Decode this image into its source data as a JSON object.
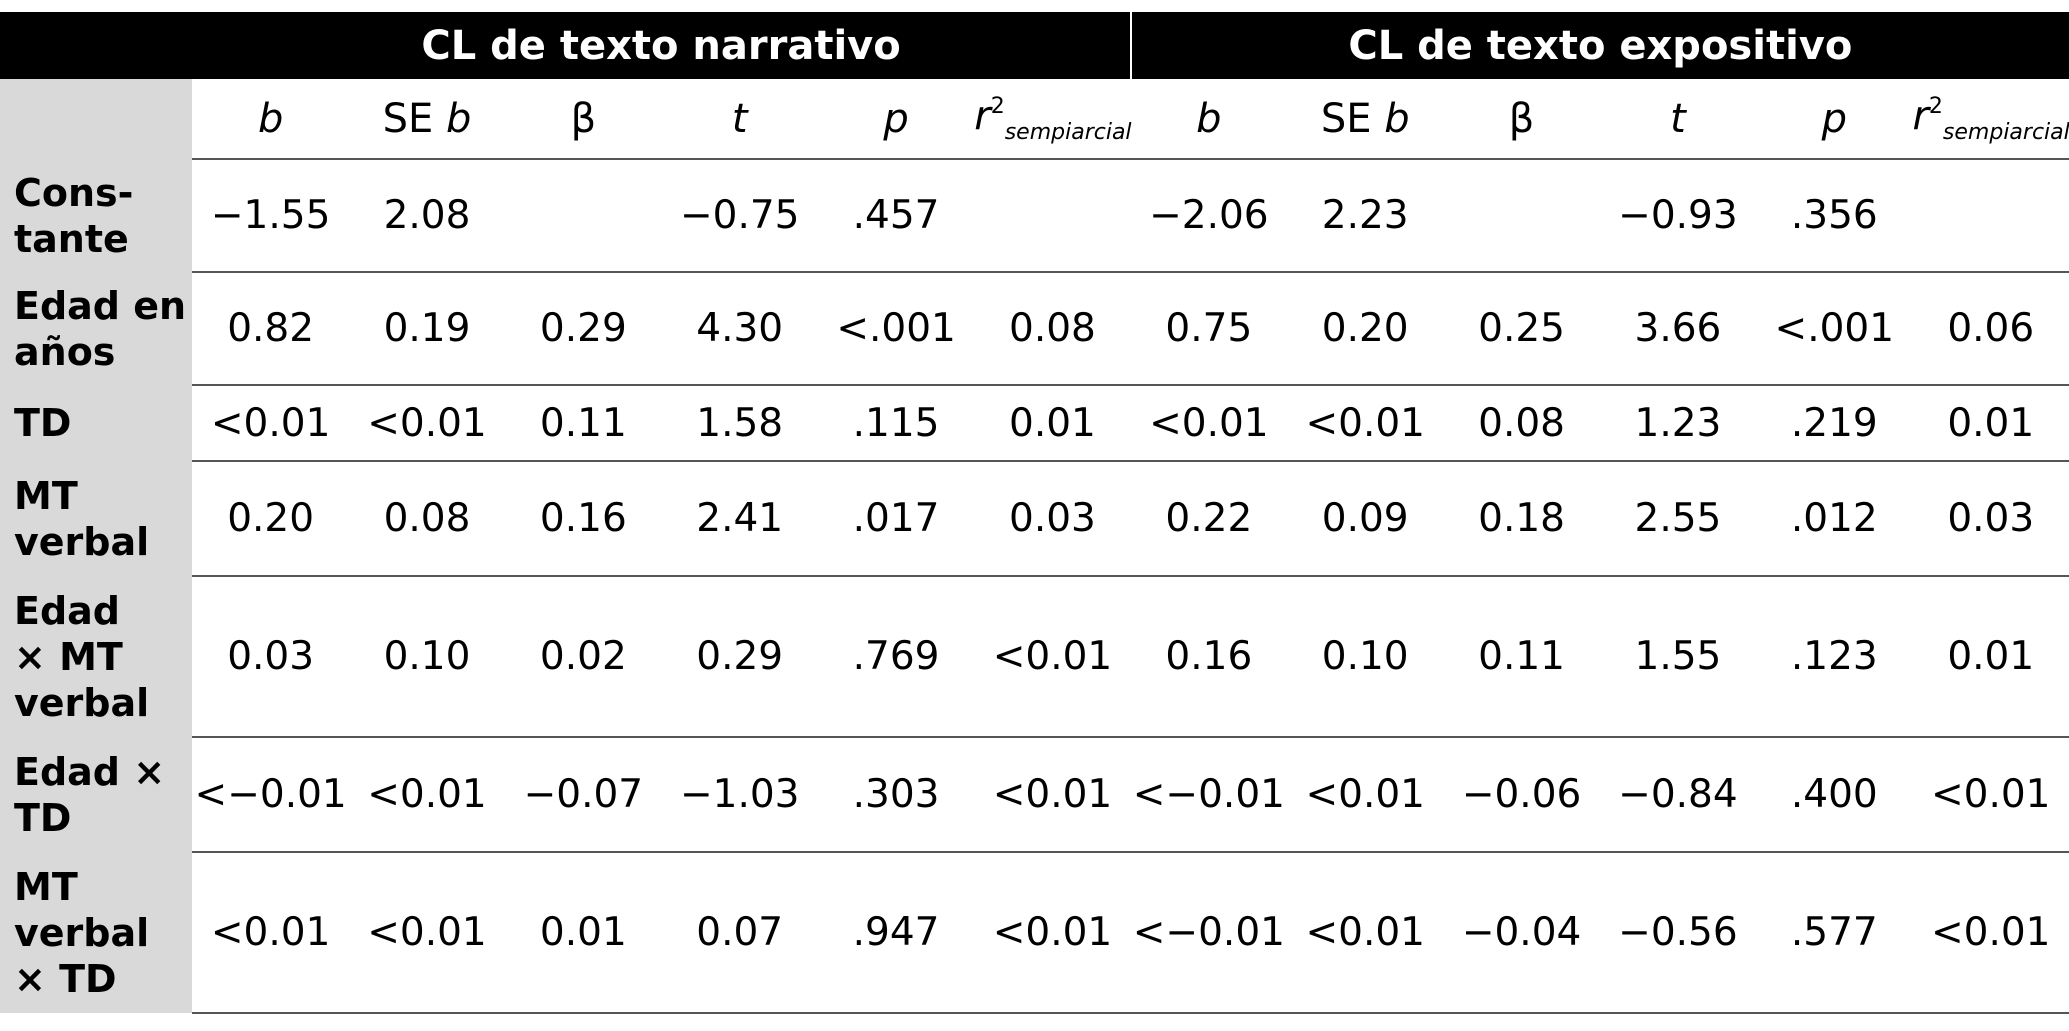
{
  "groups": [
    "CL de texto narrativo",
    "CL de texto expositivo"
  ],
  "columns": {
    "b": "b",
    "se_prefix": "SE",
    "se_b": "b",
    "beta": "β",
    "t": "t",
    "p": "p",
    "r": "r",
    "r_sup": "2",
    "r_sub": "sempiarcial"
  },
  "rows": [
    {
      "label": "Cons-\ntante",
      "values": [
        "−1.55",
        "2.08",
        "",
        "−0.75",
        ".457",
        "",
        "−2.06",
        "2.23",
        "",
        "−0.93",
        ".356",
        ""
      ]
    },
    {
      "label": "Edad en\naños",
      "values": [
        "0.82",
        "0.19",
        "0.29",
        "4.30",
        "<.001",
        "0.08",
        "0.75",
        "0.20",
        "0.25",
        "3.66",
        "<.001",
        "0.06"
      ]
    },
    {
      "label": "TD",
      "values": [
        "<0.01",
        "<0.01",
        "0.11",
        "1.58",
        ".115",
        "0.01",
        "<0.01",
        "<0.01",
        "0.08",
        "1.23",
        ".219",
        "0.01"
      ]
    },
    {
      "label": "MT\nverbal",
      "values": [
        "0.20",
        "0.08",
        "0.16",
        "2.41",
        ".017",
        "0.03",
        "0.22",
        "0.09",
        "0.18",
        "2.55",
        ".012",
        "0.03"
      ]
    },
    {
      "label": "Edad\n× MT\nverbal",
      "values": [
        "0.03",
        "0.10",
        "0.02",
        "0.29",
        ".769",
        "<0.01",
        "0.16",
        "0.10",
        "0.11",
        "1.55",
        ".123",
        "0.01"
      ]
    },
    {
      "label": "Edad ×\nTD",
      "values": [
        "<−0.01",
        "<0.01",
        "−0.07",
        "−1.03",
        ".303",
        "<0.01",
        "<−0.01",
        "<0.01",
        "−0.06",
        "−0.84",
        ".400",
        "<0.01"
      ]
    },
    {
      "label": "MT\nverbal\n× TD",
      "values": [
        "<0.01",
        "<0.01",
        "0.01",
        "0.07",
        ".947",
        "<0.01",
        "<−0.01",
        "<0.01",
        "−0.04",
        "−0.56",
        ".577",
        "<0.01"
      ]
    }
  ]
}
